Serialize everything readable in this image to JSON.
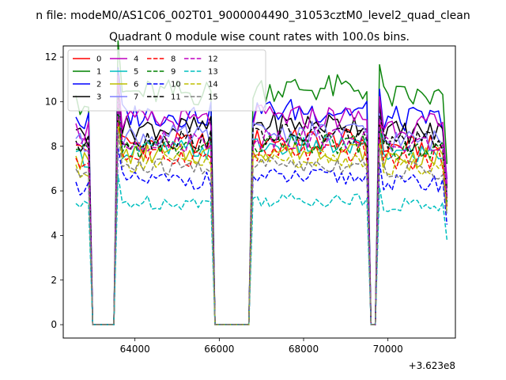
{
  "chart_data": {
    "type": "line",
    "title": "Quadrant 0 module wise count rates with 100.0s bins.",
    "suptitle": "n file: modeM0/AS1C06_002T01_9000004490_31053cztM0_level2_quad_clean",
    "xlabel": "",
    "ylabel": "",
    "x_offset_label": "+3.623e8",
    "xlim": [
      62300,
      71600
    ],
    "ylim": [
      -0.6,
      12.5
    ],
    "xticks": [
      64000,
      66000,
      68000,
      70000
    ],
    "xtick_labels": [
      "64000",
      "66000",
      "68000",
      "70000"
    ],
    "yticks": [
      0,
      2,
      4,
      6,
      8,
      10,
      12
    ],
    "ytick_labels": [
      "0",
      "2",
      "4",
      "6",
      "8",
      "10",
      "12"
    ],
    "grid": false,
    "legend": {
      "placement": "top-left",
      "columns": 5
    },
    "bin_width": 100,
    "segments": [
      {
        "x_start": 62600,
        "x_end": 62900
      },
      {
        "x_start": 63600,
        "x_end": 65800
      },
      {
        "x_start": 66800,
        "x_end": 69500
      },
      {
        "x_start": 69800,
        "x_end": 71400
      }
    ],
    "gaps": [
      {
        "x_start": 63000,
        "x_end": 63500
      },
      {
        "x_start": 65900,
        "x_end": 66700
      },
      {
        "x_start": 69600,
        "x_end": 69700
      }
    ],
    "series": [
      {
        "name": "0",
        "color": "#ff0000",
        "dash": "solid",
        "level": 8.3
      },
      {
        "name": "1",
        "color": "#008000",
        "dash": "solid",
        "level": 10.6
      },
      {
        "name": "2",
        "color": "#0000ff",
        "dash": "solid",
        "level": 9.6
      },
      {
        "name": "3",
        "color": "#000000",
        "dash": "solid",
        "level": 9.0
      },
      {
        "name": "4",
        "color": "#bf00bf",
        "dash": "solid",
        "level": 9.3
      },
      {
        "name": "5",
        "color": "#00bfbf",
        "dash": "solid",
        "level": 8.0
      },
      {
        "name": "6",
        "color": "#bfbf00",
        "dash": "solid",
        "level": 7.8
      },
      {
        "name": "7",
        "color": "#8080ff",
        "dash": "solid",
        "level": 8.6
      },
      {
        "name": "8",
        "color": "#ff0000",
        "dash": "dashed",
        "level": 7.7
      },
      {
        "name": "9",
        "color": "#008000",
        "dash": "dashed",
        "level": 8.1
      },
      {
        "name": "10",
        "color": "#0000ff",
        "dash": "dashed",
        "level": 6.6
      },
      {
        "name": "11",
        "color": "#000000",
        "dash": "dashed",
        "level": 8.5
      },
      {
        "name": "12",
        "color": "#bf00bf",
        "dash": "dashed",
        "level": 8.4
      },
      {
        "name": "13",
        "color": "#00bfbf",
        "dash": "dashed",
        "level": 5.6
      },
      {
        "name": "14",
        "color": "#bfbf00",
        "dash": "dashed",
        "level": 7.4
      },
      {
        "name": "15",
        "color": "#808080",
        "dash": "dashed",
        "level": 7.2
      }
    ]
  }
}
